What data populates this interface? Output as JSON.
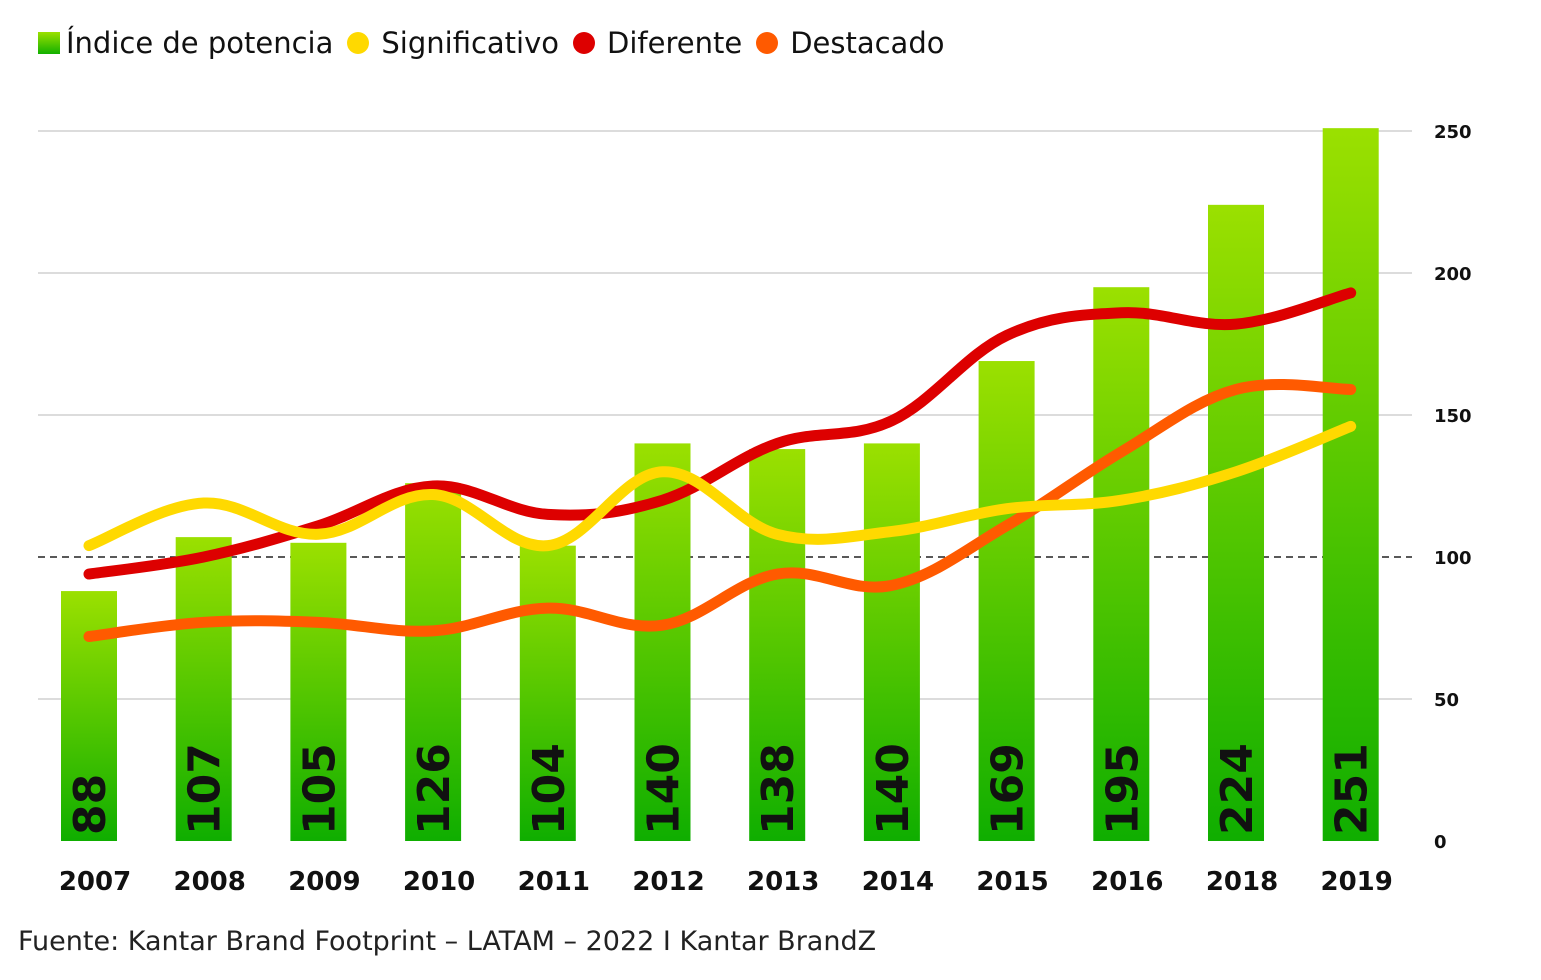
{
  "legend": [
    {
      "label": "Índice de potencia",
      "color": "#2fc000",
      "shape": "square"
    },
    {
      "label": "Significativo",
      "color": "#ffd900",
      "shape": "dot"
    },
    {
      "label": "Diferente",
      "color": "#dd0000",
      "shape": "dot"
    },
    {
      "label": "Destacado",
      "color": "#ff5a00",
      "shape": "dot"
    }
  ],
  "source": "Fuente: Kantar Brand Footprint – LATAM – 2022 I Kantar BrandZ",
  "chart_data": {
    "type": "bar",
    "categories": [
      "2007",
      "2008",
      "2009",
      "2010",
      "2011",
      "2012",
      "2013",
      "2014",
      "2015",
      "2016",
      "2018",
      "2019"
    ],
    "bar_series": {
      "name": "Índice de potencia",
      "values": [
        88,
        107,
        105,
        126,
        104,
        140,
        138,
        140,
        169,
        195,
        224,
        251
      ]
    },
    "series": [
      {
        "name": "Significativo",
        "type": "line",
        "color": "#ffd900",
        "values": [
          104,
          119,
          108,
          122,
          104,
          130,
          108,
          109,
          117,
          120,
          130,
          146
        ]
      },
      {
        "name": "Diferente",
        "type": "line",
        "color": "#dd0000",
        "values": [
          94,
          100,
          111,
          125,
          115,
          120,
          140,
          148,
          178,
          186,
          182,
          193
        ]
      },
      {
        "name": "Destacado",
        "type": "line",
        "color": "#ff5a00",
        "values": [
          72,
          77,
          77,
          74,
          82,
          76,
          94,
          90,
          111,
          137,
          159,
          159
        ]
      }
    ],
    "ylim": [
      0,
      250
    ],
    "yticks": [
      "0",
      "50",
      "100",
      "150",
      "200",
      "250"
    ],
    "reference_line": 100,
    "grid": true,
    "legend_position": "top-left",
    "colors": {
      "bar_top": "#9be000",
      "bar_bottom": "#0fae00",
      "grid": "#c8c8c8",
      "reference": "#222222"
    }
  }
}
